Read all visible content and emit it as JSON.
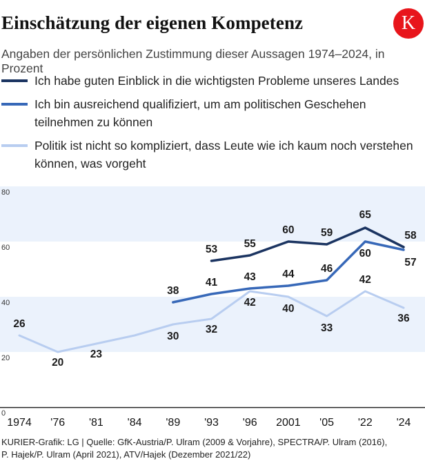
{
  "header": {
    "title": "Einschätzung der eigenen Kompetenz",
    "logo_letter": "K",
    "subtitle": "Angaben der persönlichen Zustimmung dieser Aussagen 1974–2024, in Prozent"
  },
  "colors": {
    "logo": "#e8151b",
    "band": "#ebf2fc",
    "series_1": "#1b3461",
    "series_2": "#3768b8",
    "series_3": "#b8cdf0",
    "axis": "#222222"
  },
  "chart_data": {
    "type": "line",
    "categories": [
      "1974",
      "'76",
      "'81",
      "'84",
      "'89",
      "'93",
      "'96",
      "2001",
      "'05",
      "'22",
      "'24"
    ],
    "ylim": [
      0,
      80
    ],
    "yticks": [
      "0",
      "20",
      "40",
      "60",
      "80"
    ],
    "series": [
      {
        "name": "Ich habe guten Einblick in die wichtigsten Probleme unseres Landes",
        "values": [
          null,
          null,
          null,
          null,
          null,
          53,
          55,
          60,
          59,
          65,
          58
        ],
        "labels": [
          "",
          "",
          "",
          "",
          "",
          "53",
          "55",
          "60",
          "59",
          "65",
          "58"
        ]
      },
      {
        "name": "Ich bin ausreichend qualifiziert, um am politischen Geschehen teilnehmen zu können",
        "values": [
          null,
          null,
          null,
          null,
          38,
          41,
          43,
          44,
          46,
          60,
          57
        ],
        "labels": [
          "",
          "",
          "",
          "",
          "38",
          "41",
          "43",
          "44",
          "46",
          "60",
          "57"
        ]
      },
      {
        "name": "Politik ist nicht so kompliziert, dass Leute wie ich kaum noch verstehen können, was vorgeht",
        "values": [
          26,
          20,
          23,
          26,
          30,
          32,
          42,
          40,
          33,
          42,
          36
        ],
        "labels": [
          "26",
          "20",
          "23",
          "",
          "30",
          "32",
          "42",
          "40",
          "33",
          "42",
          "36"
        ]
      }
    ]
  },
  "footer": {
    "line1": "KURIER-Grafik: LG | Quelle: GfK-Austria/P. Ulram (2009 & Vorjahre), SPECTRA/P. Ulram (2016),",
    "line2": "P. Hajek/P. Ulram (April 2021), ATV/Hajek (Dezember 2021/22)"
  }
}
